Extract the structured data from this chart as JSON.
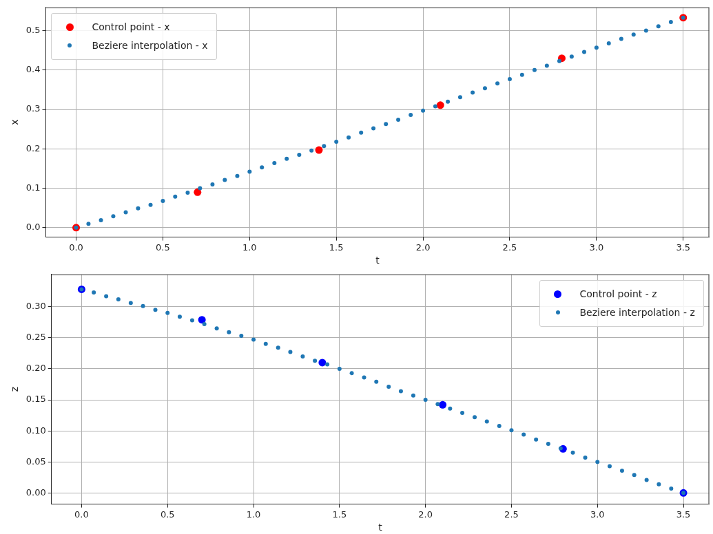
{
  "chart_data": [
    {
      "type": "scatter",
      "xlabel": "t",
      "ylabel": "x",
      "grid": true,
      "legend": "top left",
      "marker": "circle",
      "xlim": [
        -0.175,
        3.65
      ],
      "xticks": [
        {
          "value": 0,
          "label": "0.0"
        },
        {
          "value": 0.5,
          "label": "0.5"
        },
        {
          "value": 1,
          "label": "1.0"
        },
        {
          "value": 1.5,
          "label": "1.5"
        },
        {
          "value": 2,
          "label": "2.0"
        },
        {
          "value": 2.5,
          "label": "2.5"
        },
        {
          "value": 3,
          "label": "3.0"
        },
        {
          "value": 3.5,
          "label": "3.5"
        }
      ],
      "ylim": [
        -0.024,
        0.559
      ],
      "yticks": [
        {
          "value": 0,
          "label": "0.0"
        },
        {
          "value": 0.1,
          "label": "0.1"
        },
        {
          "value": 0.2,
          "label": "0.2"
        },
        {
          "value": 0.3,
          "label": "0.3"
        },
        {
          "value": 0.4,
          "label": "0.4"
        },
        {
          "value": 0.5,
          "label": "0.5"
        }
      ],
      "series": [
        {
          "name": "Control point - x",
          "color": "#ff0000",
          "x": [
            0,
            0.7,
            1.4,
            2.1,
            2.8,
            3.5
          ],
          "values": [
            0,
            0.09,
            0.197,
            0.311,
            0.43,
            0.533
          ]
        },
        {
          "name": "Beziere interpolation - x",
          "color": "#1f77b4",
          "x": [
            0,
            0.071,
            0.143,
            0.214,
            0.286,
            0.357,
            0.429,
            0.5,
            0.571,
            0.643,
            0.714,
            0.786,
            0.857,
            0.929,
            1,
            1.071,
            1.143,
            1.214,
            1.286,
            1.357,
            1.429,
            1.5,
            1.571,
            1.643,
            1.714,
            1.786,
            1.857,
            1.929,
            2,
            2.071,
            2.143,
            2.214,
            2.286,
            2.357,
            2.429,
            2.5,
            2.571,
            2.643,
            2.714,
            2.786,
            2.857,
            2.929,
            3,
            3.071,
            3.143,
            3.214,
            3.286,
            3.357,
            3.429,
            3.5
          ],
          "values": [
            0,
            0.01,
            0.019,
            0.029,
            0.039,
            0.049,
            0.058,
            0.068,
            0.079,
            0.089,
            0.1,
            0.11,
            0.121,
            0.131,
            0.142,
            0.153,
            0.164,
            0.175,
            0.185,
            0.196,
            0.207,
            0.218,
            0.229,
            0.241,
            0.252,
            0.263,
            0.274,
            0.286,
            0.297,
            0.308,
            0.32,
            0.331,
            0.343,
            0.354,
            0.366,
            0.377,
            0.388,
            0.4,
            0.411,
            0.423,
            0.434,
            0.446,
            0.457,
            0.468,
            0.479,
            0.49,
            0.5,
            0.511,
            0.522,
            0.533
          ]
        }
      ]
    },
    {
      "type": "scatter",
      "xlabel": "t",
      "ylabel": "z",
      "grid": true,
      "legend": "top right",
      "marker": "circle",
      "xlim": [
        -0.175,
        3.65
      ],
      "xticks": [
        {
          "value": 0,
          "label": "0.0"
        },
        {
          "value": 0.5,
          "label": "0.5"
        },
        {
          "value": 1,
          "label": "1.0"
        },
        {
          "value": 1.5,
          "label": "1.5"
        },
        {
          "value": 2,
          "label": "2.0"
        },
        {
          "value": 2.5,
          "label": "2.5"
        },
        {
          "value": 3,
          "label": "3.0"
        },
        {
          "value": 3.5,
          "label": "3.5"
        }
      ],
      "ylim": [
        -0.018,
        0.352
      ],
      "yticks": [
        {
          "value": 0,
          "label": "0.00"
        },
        {
          "value": 0.05,
          "label": "0.05"
        },
        {
          "value": 0.1,
          "label": "0.10"
        },
        {
          "value": 0.15,
          "label": "0.15"
        },
        {
          "value": 0.2,
          "label": "0.20"
        },
        {
          "value": 0.25,
          "label": "0.25"
        },
        {
          "value": 0.3,
          "label": "0.30"
        }
      ],
      "series": [
        {
          "name": "Control point - z",
          "color": "#0000ff",
          "x": [
            0,
            0.7,
            1.4,
            2.1,
            2.8,
            3.5
          ],
          "values": [
            0.328,
            0.279,
            0.21,
            0.142,
            0.071,
            0
          ]
        },
        {
          "name": "Beziere interpolation - z",
          "color": "#1f77b4",
          "x": [
            0,
            0.071,
            0.143,
            0.214,
            0.286,
            0.357,
            0.429,
            0.5,
            0.571,
            0.643,
            0.714,
            0.786,
            0.857,
            0.929,
            1,
            1.071,
            1.143,
            1.214,
            1.286,
            1.357,
            1.429,
            1.5,
            1.571,
            1.643,
            1.714,
            1.786,
            1.857,
            1.929,
            2,
            2.071,
            2.143,
            2.214,
            2.286,
            2.357,
            2.429,
            2.5,
            2.571,
            2.643,
            2.714,
            2.786,
            2.857,
            2.929,
            3,
            3.071,
            3.143,
            3.214,
            3.286,
            3.357,
            3.429,
            3.5
          ],
          "values": [
            0.328,
            0.323,
            0.317,
            0.312,
            0.306,
            0.301,
            0.295,
            0.29,
            0.284,
            0.278,
            0.272,
            0.265,
            0.259,
            0.253,
            0.247,
            0.24,
            0.234,
            0.227,
            0.22,
            0.213,
            0.207,
            0.2,
            0.193,
            0.186,
            0.179,
            0.171,
            0.164,
            0.157,
            0.15,
            0.143,
            0.136,
            0.129,
            0.122,
            0.115,
            0.108,
            0.101,
            0.094,
            0.086,
            0.079,
            0.072,
            0.065,
            0.057,
            0.05,
            0.043,
            0.036,
            0.029,
            0.021,
            0.014,
            0.007,
            0
          ]
        }
      ]
    }
  ]
}
